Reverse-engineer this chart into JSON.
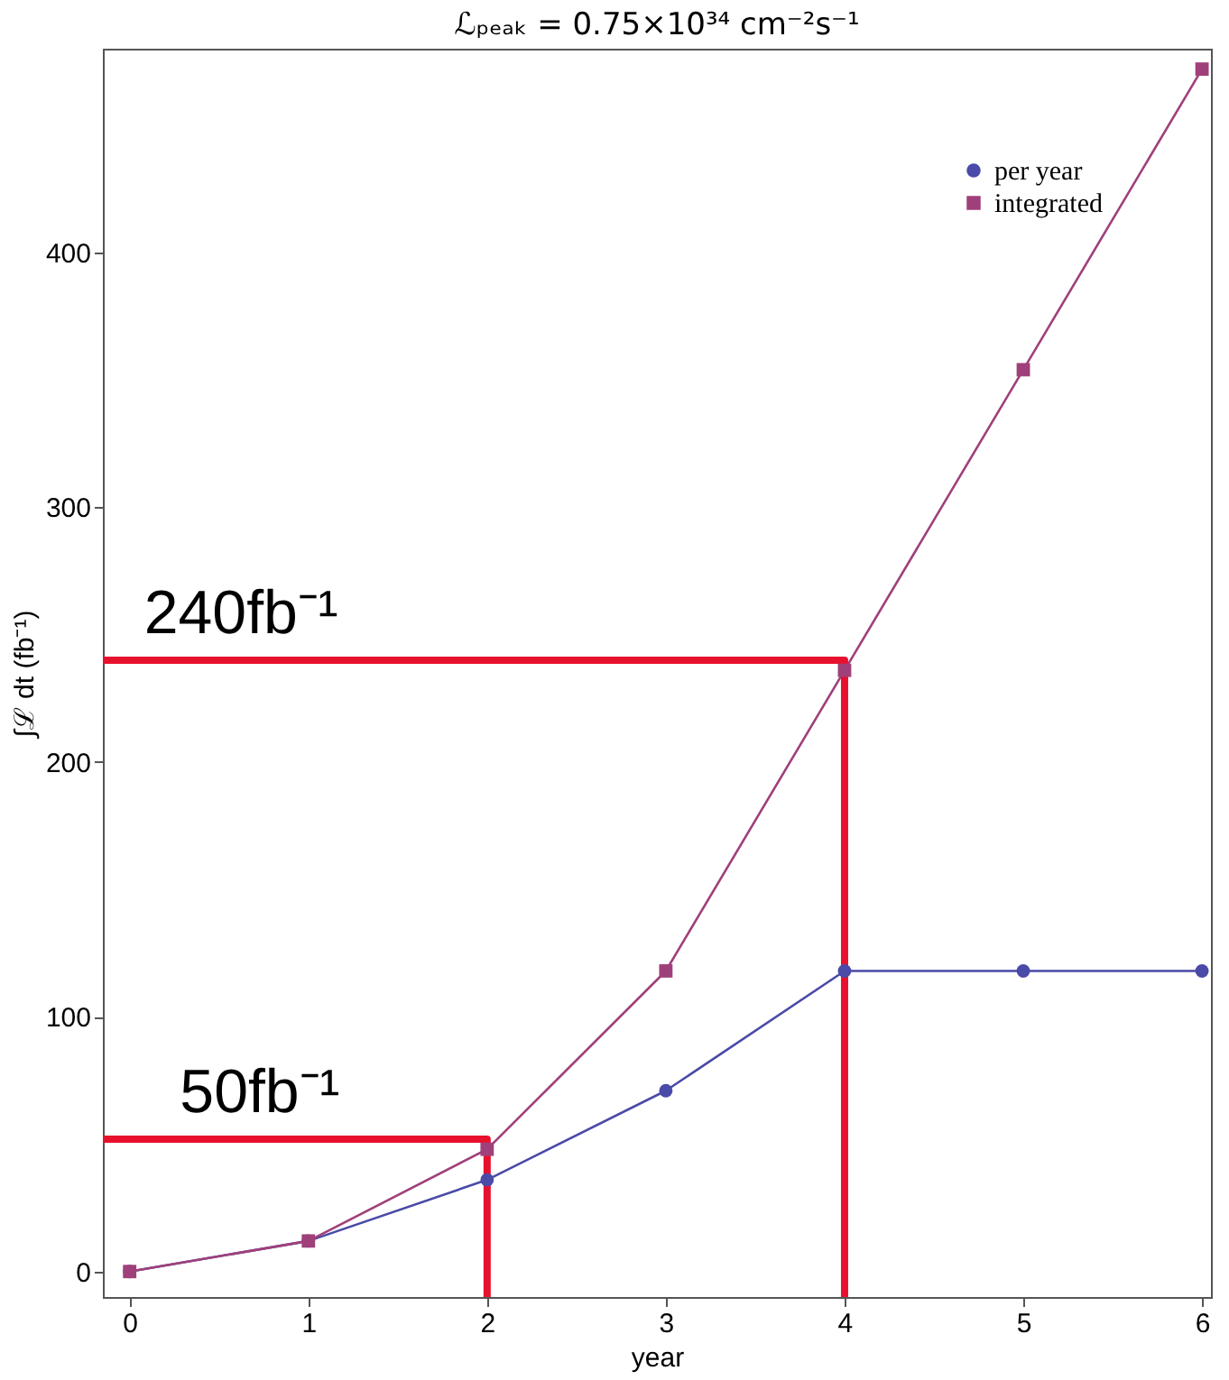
{
  "chart_data": {
    "type": "line",
    "title": "ℒₚₑₐₖ = 0.75×10³⁴ cm⁻²s⁻¹",
    "xlabel": "year",
    "ylabel": "∫ℒ dt (fb⁻¹)",
    "x": [
      0,
      1,
      2,
      3,
      4,
      5,
      6
    ],
    "series": [
      {
        "name": "per year",
        "color": "#4a4aa8",
        "marker": "circle",
        "values": [
          0,
          12,
          36,
          71,
          118,
          118,
          118
        ]
      },
      {
        "name": "integrated",
        "color": "#a0407a",
        "marker": "square",
        "values": [
          0,
          12,
          48,
          118,
          236,
          354,
          472
        ]
      },
      {
        "color": "#e8112d",
        "x": [
          -0.15,
          4,
          4
        ],
        "values": [
          240,
          240,
          -10
        ]
      },
      {
        "color": "#e8112d",
        "x": [
          -0.15,
          2,
          2
        ],
        "values": [
          52,
          52,
          -10
        ]
      }
    ],
    "annotations": [
      {
        "text": "240fb⁻¹",
        "x": 0,
        "y": 240
      },
      {
        "text": "50fb⁻¹",
        "x": 0.2,
        "y": 52
      }
    ],
    "xlim": [
      -0.15,
      6.05
    ],
    "ylim": [
      -10,
      480
    ],
    "xticks": [
      0,
      1,
      2,
      3,
      4,
      5,
      6
    ],
    "yticks": [
      0,
      100,
      200,
      300,
      400
    ],
    "grid": false,
    "legend": "top right"
  }
}
